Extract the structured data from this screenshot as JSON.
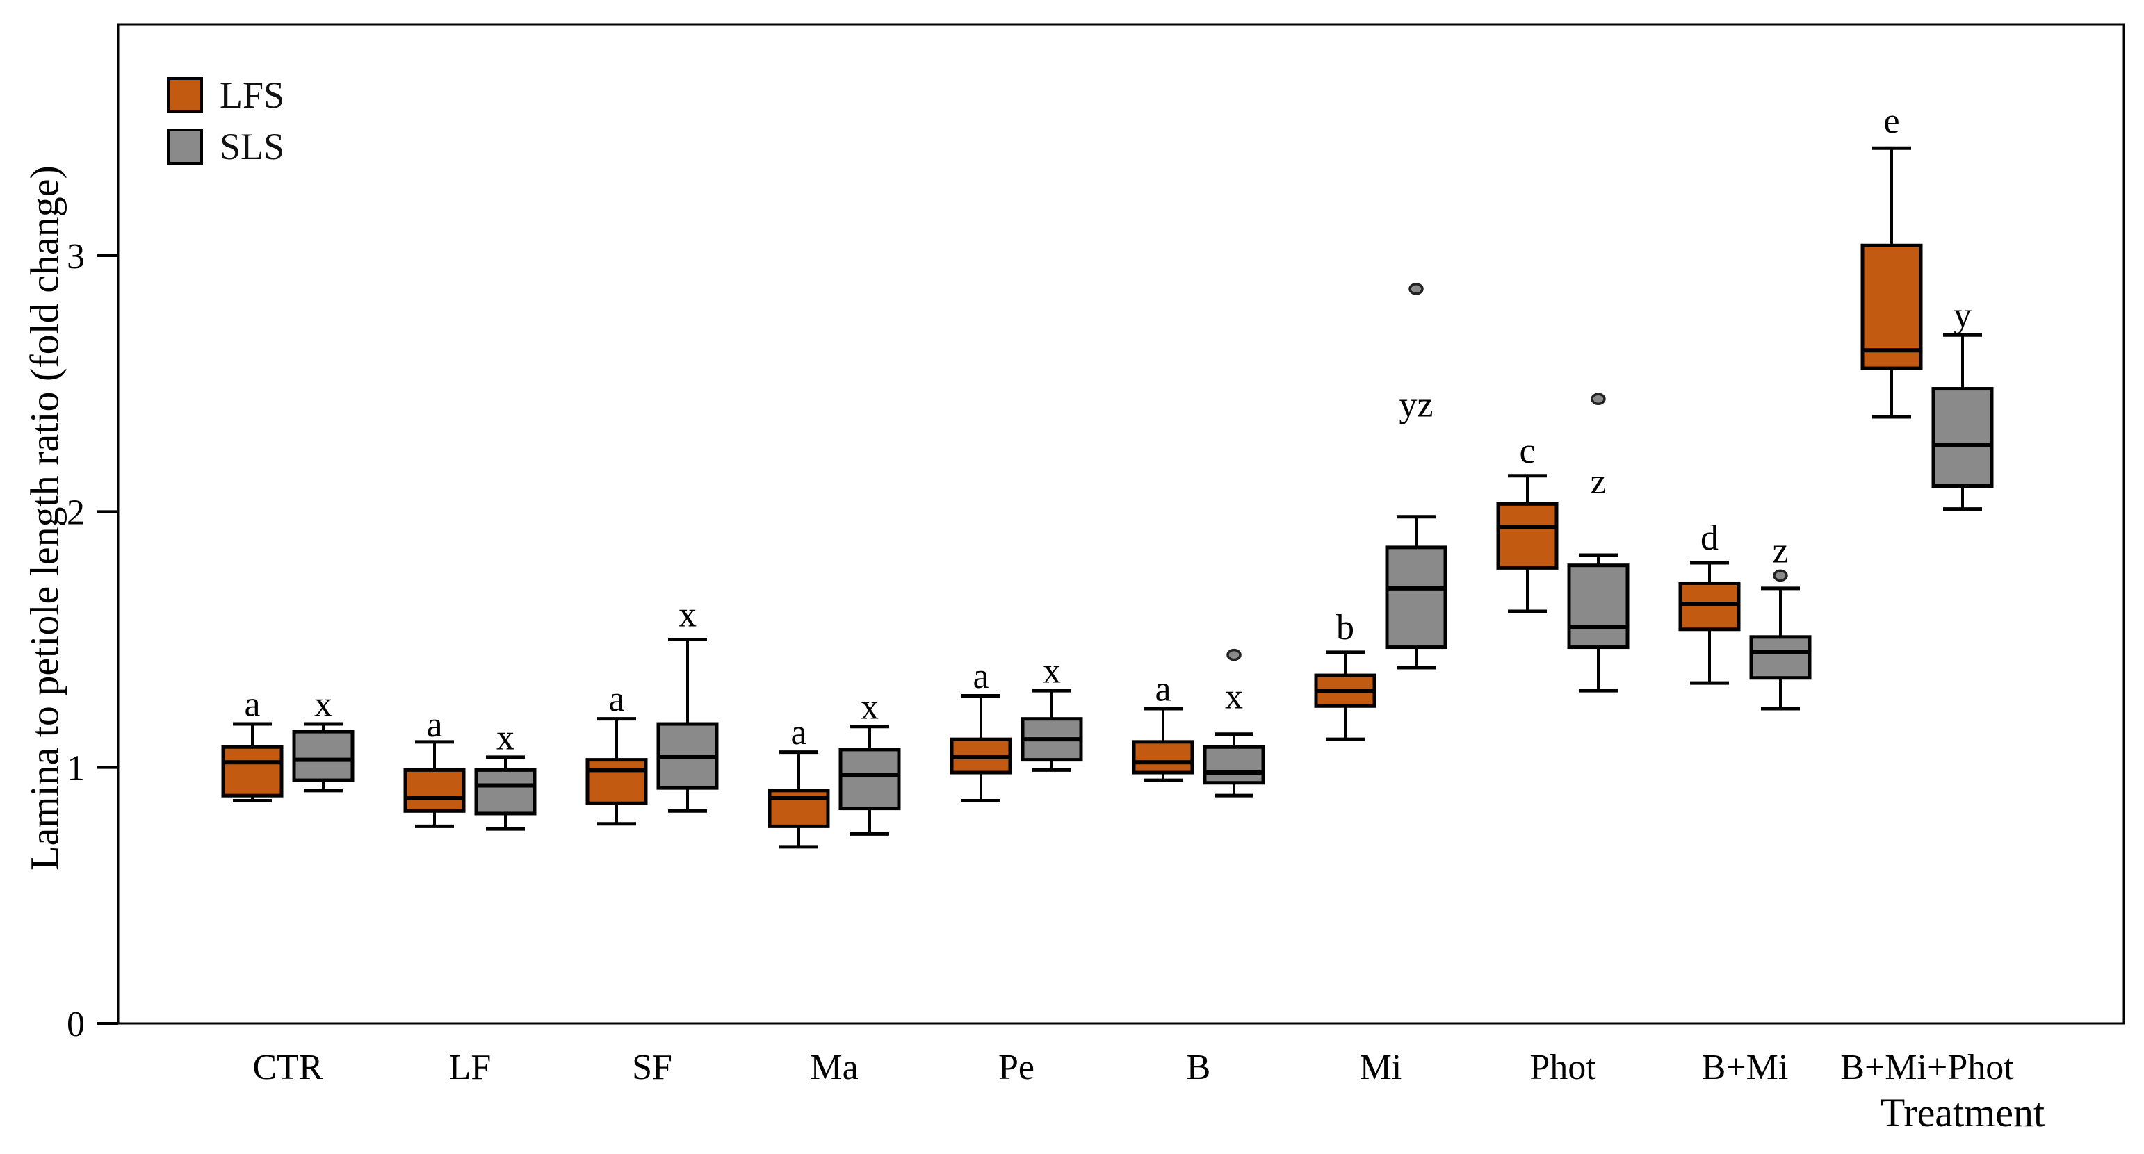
{
  "chart_data": {
    "type": "boxplot",
    "title": "",
    "ylabel": "Lamina to petiole length ratio (fold change)",
    "xlabel": "Treatment",
    "ylim": [
      0,
      3.9
    ],
    "yticks": [
      0,
      1,
      2,
      3
    ],
    "grid": false,
    "categories": [
      "CTR",
      "LF",
      "SF",
      "Ma",
      "Pe",
      "B",
      "Mi",
      "Phot",
      "B+Mi",
      "B+Mi+Phot"
    ],
    "legend": {
      "position": "top-left",
      "entries": [
        {
          "label": "LFS",
          "color": "#c35a11"
        },
        {
          "label": "SLS",
          "color": "#8a8a8a"
        }
      ]
    },
    "series": [
      {
        "name": "LFS",
        "color": "#c35a11",
        "boxes": [
          {
            "category": "CTR",
            "low": 0.87,
            "q1": 0.89,
            "median": 1.02,
            "q3": 1.08,
            "high": 1.17,
            "outliers": [],
            "letter": "a",
            "letter_y": 1.25
          },
          {
            "category": "LF",
            "low": 0.77,
            "q1": 0.83,
            "median": 0.88,
            "q3": 0.99,
            "high": 1.1,
            "outliers": [],
            "letter": "a",
            "letter_y": 1.17
          },
          {
            "category": "SF",
            "low": 0.78,
            "q1": 0.86,
            "median": 0.99,
            "q3": 1.03,
            "high": 1.19,
            "outliers": [],
            "letter": "a",
            "letter_y": 1.27
          },
          {
            "category": "Ma",
            "low": 0.69,
            "q1": 0.77,
            "median": 0.88,
            "q3": 0.91,
            "high": 1.06,
            "outliers": [],
            "letter": "a",
            "letter_y": 1.14
          },
          {
            "category": "Pe",
            "low": 0.87,
            "q1": 0.98,
            "median": 1.04,
            "q3": 1.11,
            "high": 1.28,
            "outliers": [],
            "letter": "a",
            "letter_y": 1.36
          },
          {
            "category": "B",
            "low": 0.95,
            "q1": 0.98,
            "median": 1.02,
            "q3": 1.1,
            "high": 1.23,
            "outliers": [],
            "letter": "a",
            "letter_y": 1.31
          },
          {
            "category": "Mi",
            "low": 1.11,
            "q1": 1.24,
            "median": 1.3,
            "q3": 1.36,
            "high": 1.45,
            "outliers": [],
            "letter": "b",
            "letter_y": 1.55
          },
          {
            "category": "Phot",
            "low": 1.61,
            "q1": 1.78,
            "median": 1.94,
            "q3": 2.03,
            "high": 2.14,
            "outliers": [],
            "letter": "c",
            "letter_y": 2.24
          },
          {
            "category": "B+Mi",
            "low": 1.33,
            "q1": 1.54,
            "median": 1.64,
            "q3": 1.72,
            "high": 1.8,
            "outliers": [],
            "letter": "d",
            "letter_y": 1.9
          },
          {
            "category": "B+Mi+Phot",
            "low": 2.37,
            "q1": 2.56,
            "median": 2.63,
            "q3": 3.04,
            "high": 3.42,
            "outliers": [],
            "letter": "e",
            "letter_y": 3.53
          }
        ]
      },
      {
        "name": "SLS",
        "color": "#8a8a8a",
        "boxes": [
          {
            "category": "CTR",
            "low": 0.91,
            "q1": 0.95,
            "median": 1.03,
            "q3": 1.14,
            "high": 1.17,
            "outliers": [],
            "letter": "x",
            "letter_y": 1.25
          },
          {
            "category": "LF",
            "low": 0.76,
            "q1": 0.82,
            "median": 0.93,
            "q3": 0.99,
            "high": 1.04,
            "outliers": [],
            "letter": "x",
            "letter_y": 1.12
          },
          {
            "category": "SF",
            "low": 0.83,
            "q1": 0.92,
            "median": 1.04,
            "q3": 1.17,
            "high": 1.5,
            "outliers": [],
            "letter": "x",
            "letter_y": 1.6
          },
          {
            "category": "Ma",
            "low": 0.74,
            "q1": 0.84,
            "median": 0.97,
            "q3": 1.07,
            "high": 1.16,
            "outliers": [],
            "letter": "x",
            "letter_y": 1.24
          },
          {
            "category": "Pe",
            "low": 0.99,
            "q1": 1.03,
            "median": 1.11,
            "q3": 1.19,
            "high": 1.3,
            "outliers": [],
            "letter": "x",
            "letter_y": 1.38
          },
          {
            "category": "B",
            "low": 0.89,
            "q1": 0.94,
            "median": 0.98,
            "q3": 1.08,
            "high": 1.13,
            "outliers": [
              1.44
            ],
            "letter": "x",
            "letter_y": 1.28
          },
          {
            "category": "Mi",
            "low": 1.39,
            "q1": 1.47,
            "median": 1.7,
            "q3": 1.86,
            "high": 1.98,
            "outliers": [
              2.87
            ],
            "letter": "yz",
            "letter_y": 2.42
          },
          {
            "category": "Phot",
            "low": 1.3,
            "q1": 1.47,
            "median": 1.55,
            "q3": 1.79,
            "high": 1.83,
            "outliers": [
              2.44
            ],
            "letter": "z",
            "letter_y": 2.12
          },
          {
            "category": "B+Mi",
            "low": 1.23,
            "q1": 1.35,
            "median": 1.45,
            "q3": 1.51,
            "high": 1.7,
            "outliers": [
              1.75
            ],
            "letter": "z",
            "letter_y": 1.85
          },
          {
            "category": "B+Mi+Phot",
            "low": 2.01,
            "q1": 2.1,
            "median": 2.26,
            "q3": 2.48,
            "high": 2.69,
            "outliers": [],
            "letter": "y",
            "letter_y": 2.77
          }
        ]
      }
    ]
  }
}
